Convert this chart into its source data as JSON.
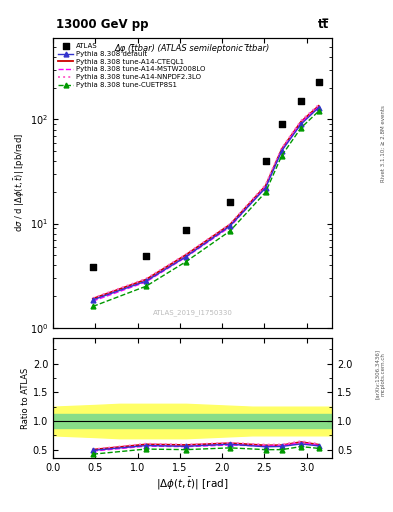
{
  "title_top": "13000 GeV pp",
  "title_right": "tt̅",
  "plot_title": "Δφ (t̅tbar) (ATLAS semileptonic t̅tbar)",
  "watermark": "ATLAS_2019_I1750330",
  "rivet_label": "Rivet 3.1.10; ≥ 2.8M events",
  "arxiv_label": "[arXiv:1306.3436]",
  "mcplots_label": "mcplots.cern.ch",
  "ylabel_main": "dσ / d |Δφ(t,bar{t})| [pb/rad]",
  "ylabel_ratio": "Ratio to ATLAS",
  "atlas_x": [
    0.4712,
    1.0996,
    1.5708,
    2.0944,
    2.5133,
    2.7053,
    2.9322,
    3.1416
  ],
  "atlas_y": [
    3.8,
    4.9,
    8.6,
    16.0,
    40.0,
    90.0,
    150.0,
    230.0
  ],
  "mc_x": [
    0.4712,
    1.0996,
    1.5708,
    2.0944,
    2.5133,
    2.7053,
    2.9322,
    3.1416
  ],
  "default_y": [
    1.85,
    2.8,
    4.8,
    9.5,
    22.0,
    50.0,
    90.0,
    130.0
  ],
  "cteql1_y": [
    1.9,
    2.9,
    5.0,
    9.8,
    23.0,
    52.0,
    95.0,
    135.0
  ],
  "mstw_y": [
    1.8,
    2.75,
    4.75,
    9.3,
    22.5,
    51.0,
    93.0,
    132.0
  ],
  "nnpdf_y": [
    1.92,
    2.95,
    5.05,
    9.9,
    23.5,
    53.0,
    97.0,
    138.0
  ],
  "cuetp8s1_y": [
    1.6,
    2.5,
    4.3,
    8.5,
    20.0,
    45.0,
    83.0,
    120.0
  ],
  "ratio_x": [
    0.4712,
    1.0996,
    1.5708,
    2.0944,
    2.5133,
    2.7053,
    2.9322,
    3.1416
  ],
  "ratio_default": [
    0.487,
    0.571,
    0.558,
    0.594,
    0.55,
    0.556,
    0.6,
    0.565
  ],
  "ratio_cteql1": [
    0.5,
    0.592,
    0.581,
    0.613,
    0.575,
    0.578,
    0.633,
    0.587
  ],
  "ratio_mstw": [
    0.474,
    0.561,
    0.552,
    0.581,
    0.563,
    0.567,
    0.62,
    0.574
  ],
  "ratio_nnpdf": [
    0.505,
    0.603,
    0.587,
    0.619,
    0.588,
    0.589,
    0.647,
    0.6
  ],
  "ratio_cuetp8s1": [
    0.421,
    0.51,
    0.5,
    0.531,
    0.5,
    0.5,
    0.553,
    0.522
  ],
  "color_default": "#3333cc",
  "color_cteql1": "#cc0000",
  "color_mstw": "#ff00ff",
  "color_nnpdf": "#ff66cc",
  "color_cuetp8s1": "#009900",
  "xlim": [
    0.0,
    3.3
  ],
  "ylim_main_lo": 1.0,
  "ylim_main_hi": 600.0,
  "ylim_ratio_lo": 0.35,
  "ylim_ratio_hi": 2.45
}
